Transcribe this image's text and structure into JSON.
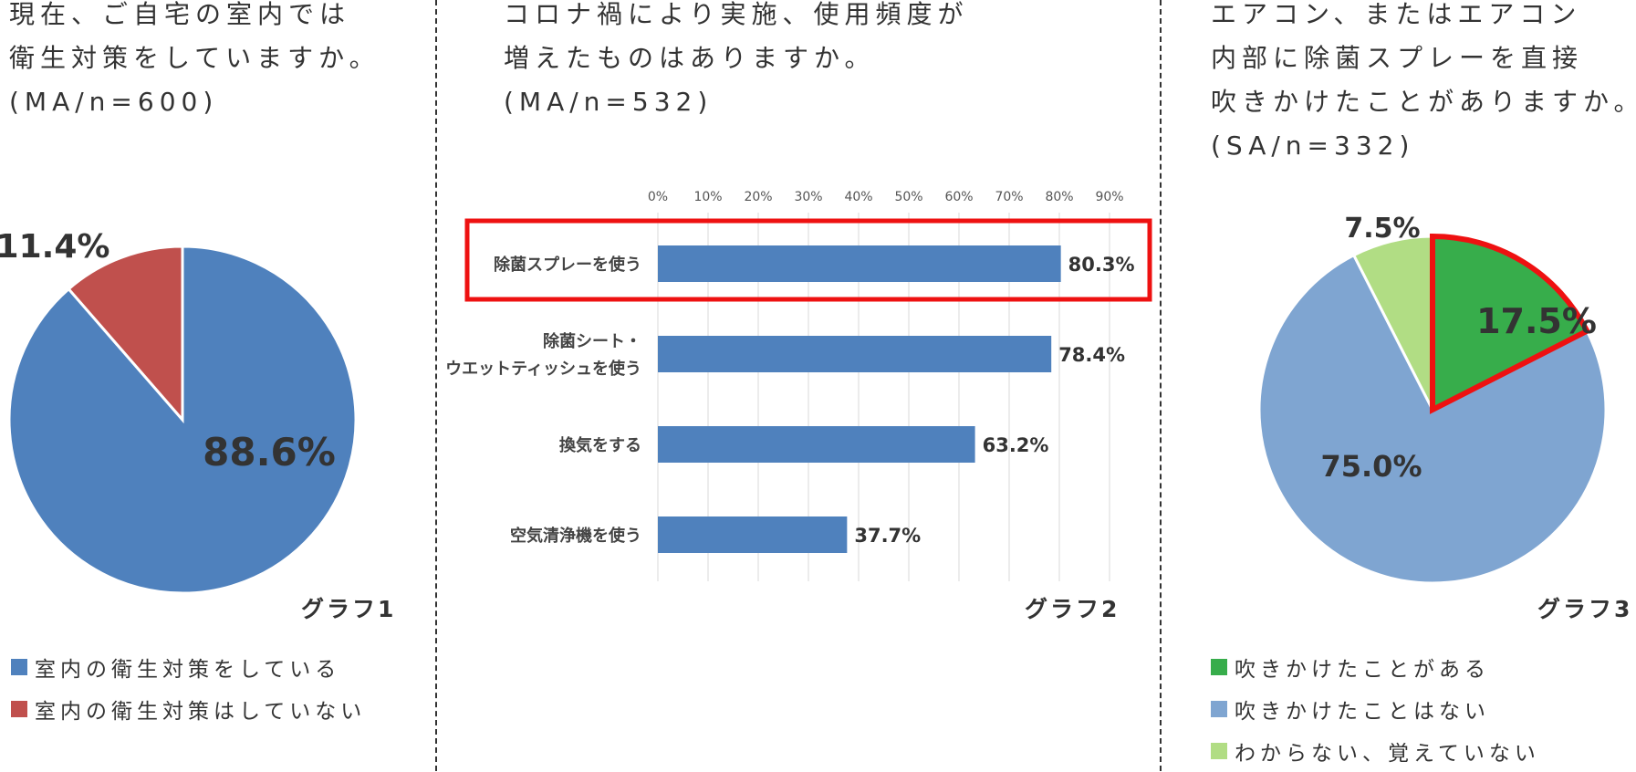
{
  "panels": [
    {
      "question_lines": [
        "現在、ご自宅の室内では",
        "衛生対策をしていますか。",
        "(MA/n=600)"
      ],
      "graph_label": "グラフ1"
    },
    {
      "question_lines": [
        "コロナ禍により実施、使用頻度が",
        "増えたものはありますか。",
        "(MA/n=532)"
      ],
      "graph_label": "グラフ2"
    },
    {
      "question_lines": [
        "エアコン、またはエアコン",
        "内部に除菌スプレーを直接",
        "吹きかけたことがありますか。",
        "(SA/n=332)"
      ],
      "graph_label": "グラフ3"
    }
  ],
  "chart_data": [
    {
      "type": "pie",
      "labels": [
        "室内の衛生対策をしている",
        "室内の衛生対策はしていない"
      ],
      "values": [
        88.6,
        11.4
      ],
      "value_labels": [
        "88.6%",
        "11.4%"
      ],
      "colors": [
        "#4f81bd",
        "#c0504d"
      ],
      "legend": "bottom"
    },
    {
      "type": "bar",
      "orientation": "horizontal",
      "categories": [
        [
          "除菌スプレーを使う"
        ],
        [
          "除菌シート・",
          "ウエットティッシュを使う"
        ],
        [
          "換気をする"
        ],
        [
          "空気清浄機を使う"
        ]
      ],
      "values": [
        80.3,
        78.4,
        63.2,
        37.7
      ],
      "value_labels": [
        "80.3%",
        "78.4%",
        "63.2%",
        "37.7%"
      ],
      "xlim": [
        0,
        90
      ],
      "ticks": [
        0,
        10,
        20,
        30,
        40,
        50,
        60,
        70,
        80,
        90
      ],
      "tick_labels": [
        "0%",
        "10%",
        "20%",
        "30%",
        "40%",
        "50%",
        "60%",
        "70%",
        "80%",
        "90%"
      ],
      "color": "#4f81bd",
      "grid": true,
      "highlight_index": 0,
      "highlight_color": "#ee1111"
    },
    {
      "type": "pie",
      "labels": [
        "吹きかけたことがある",
        "吹きかけたことはない",
        "わからない、覚えていない"
      ],
      "values": [
        17.5,
        75.0,
        7.5
      ],
      "value_labels": [
        "17.5%",
        "75.0%",
        "7.5%"
      ],
      "colors": [
        "#37ad4b",
        "#7fa5d1",
        "#b1dd84"
      ],
      "highlight_index": 0,
      "highlight_color": "#ee1111",
      "legend": "bottom"
    }
  ]
}
